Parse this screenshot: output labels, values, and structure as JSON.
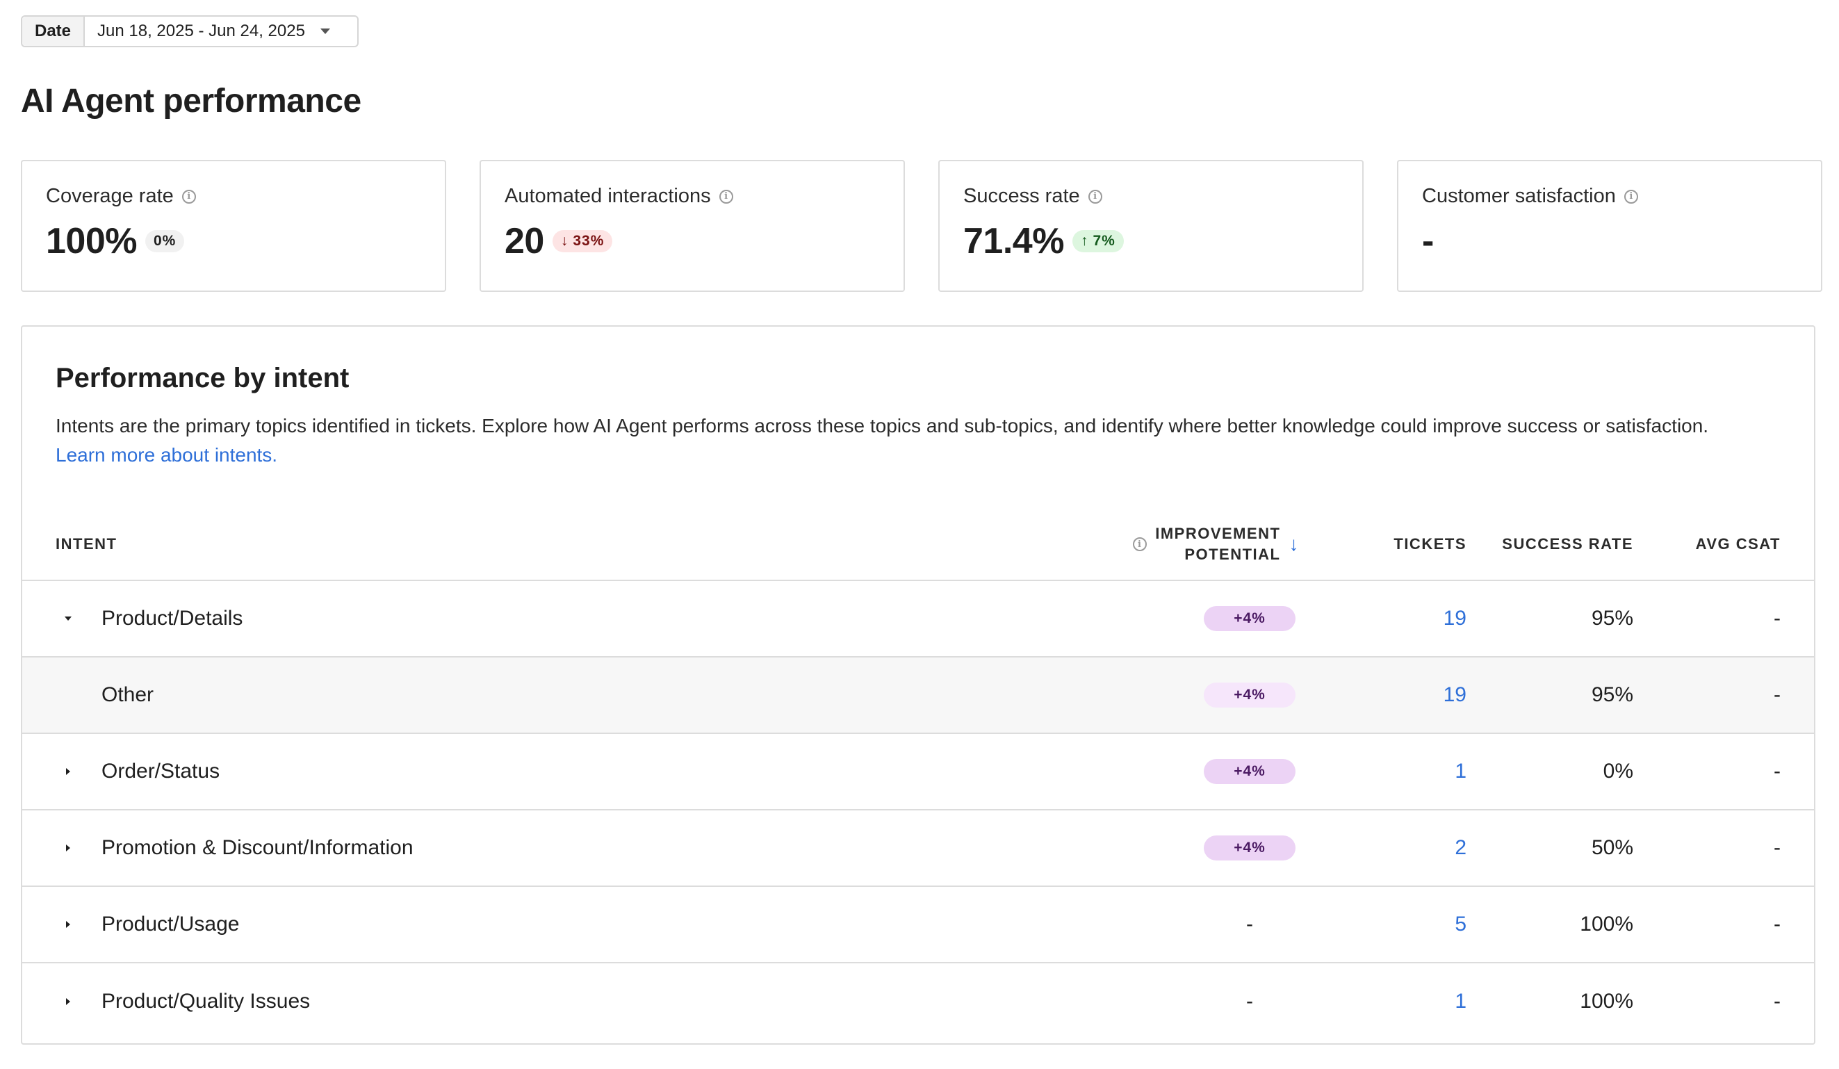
{
  "date_filter": {
    "label": "Date",
    "value": "Jun 18, 2025 - Jun 24, 2025"
  },
  "page_title": "AI Agent performance",
  "kpis": [
    {
      "label": "Coverage rate",
      "value": "100%",
      "delta": "0%",
      "trend": "neutral"
    },
    {
      "label": "Automated interactions",
      "value": "20",
      "delta": "33%",
      "trend": "down"
    },
    {
      "label": "Success rate",
      "value": "71.4%",
      "delta": "7%",
      "trend": "up"
    },
    {
      "label": "Customer satisfaction",
      "value": "-",
      "delta": "",
      "trend": "none"
    }
  ],
  "intent_panel": {
    "title": "Performance by intent",
    "description": "Intents are the primary topics identified in tickets. Explore how AI Agent performs across these topics and sub-topics, and identify where better knowledge could improve success or satisfaction.",
    "link_text": "Learn more about intents.",
    "columns": {
      "intent": "INTENT",
      "improvement_line1": "IMPROVEMENT",
      "improvement_line2": "POTENTIAL",
      "tickets": "TICKETS",
      "success_rate": "SUCCESS RATE",
      "avg_csat": "AVG CSAT"
    },
    "rows": [
      {
        "name": "Product/Details",
        "improvement": "+4%",
        "tickets": "19",
        "success_rate": "95%",
        "avg_csat": "-",
        "expanded": true,
        "sub": false
      },
      {
        "name": "Other",
        "improvement": "+4%",
        "tickets": "19",
        "success_rate": "95%",
        "avg_csat": "-",
        "expanded": false,
        "sub": true
      },
      {
        "name": "Order/Status",
        "improvement": "+4%",
        "tickets": "1",
        "success_rate": "0%",
        "avg_csat": "-",
        "expanded": false,
        "sub": false
      },
      {
        "name": "Promotion & Discount/Information",
        "improvement": "+4%",
        "tickets": "2",
        "success_rate": "50%",
        "avg_csat": "-",
        "expanded": false,
        "sub": false
      },
      {
        "name": "Product/Usage",
        "improvement": "-",
        "tickets": "5",
        "success_rate": "100%",
        "avg_csat": "-",
        "expanded": false,
        "sub": false
      },
      {
        "name": "Product/Quality Issues",
        "improvement": "-",
        "tickets": "1",
        "success_rate": "100%",
        "avg_csat": "-",
        "expanded": false,
        "sub": false
      }
    ]
  },
  "colors": {
    "link": "#2e6fd8",
    "pill_bg": "#ecd3f5",
    "badge_down_bg": "#fde4e4",
    "badge_up_bg": "#ddf6df"
  }
}
